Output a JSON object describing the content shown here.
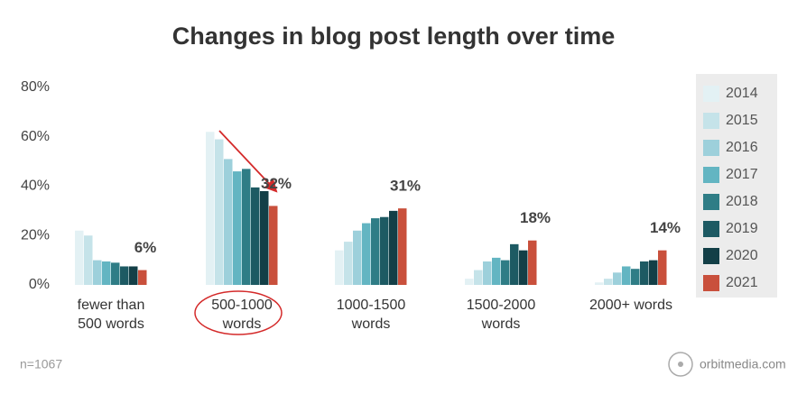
{
  "chart_data": {
    "type": "bar",
    "title": "Changes in blog post length over time",
    "categories": [
      "fewer than\n500 words",
      "500-1000\nwords",
      "1000-1500\nwords",
      "1500-2000\nwords",
      "2000+ words"
    ],
    "series": [
      {
        "name": "2014",
        "color": "#e3f1f4",
        "values": [
          22,
          62,
          14,
          2.5,
          1
        ]
      },
      {
        "name": "2015",
        "color": "#c5e3e9",
        "values": [
          20,
          59,
          17.5,
          6,
          2.5
        ]
      },
      {
        "name": "2016",
        "color": "#9dd0db",
        "values": [
          10,
          51,
          22,
          9.5,
          5
        ]
      },
      {
        "name": "2017",
        "color": "#63b5c2",
        "values": [
          9.5,
          46,
          25,
          11,
          7.5
        ]
      },
      {
        "name": "2018",
        "color": "#2f7d86",
        "values": [
          9,
          47,
          27,
          10,
          6.5
        ]
      },
      {
        "name": "2019",
        "color": "#1d5a63",
        "values": [
          7.5,
          39.5,
          27.5,
          16.5,
          9.5
        ]
      },
      {
        "name": "2020",
        "color": "#133f47",
        "values": [
          7.5,
          38,
          30,
          14,
          10
        ]
      },
      {
        "name": "2021",
        "color": "#c9503c",
        "values": [
          6,
          32,
          31,
          18,
          14
        ],
        "value_labels": [
          "6%",
          "32%",
          "31%",
          "18%",
          "14%"
        ]
      }
    ],
    "ylim": [
      0,
      80
    ],
    "yticks": [
      {
        "value": 0,
        "label": "0%"
      },
      {
        "value": 20,
        "label": "20%"
      },
      {
        "value": 40,
        "label": "40%"
      },
      {
        "value": 60,
        "label": "60%"
      },
      {
        "value": 80,
        "label": "80%"
      }
    ],
    "grid": false,
    "legend": "right",
    "annotations": [
      "n=1067",
      "orbitmedia.com"
    ]
  }
}
